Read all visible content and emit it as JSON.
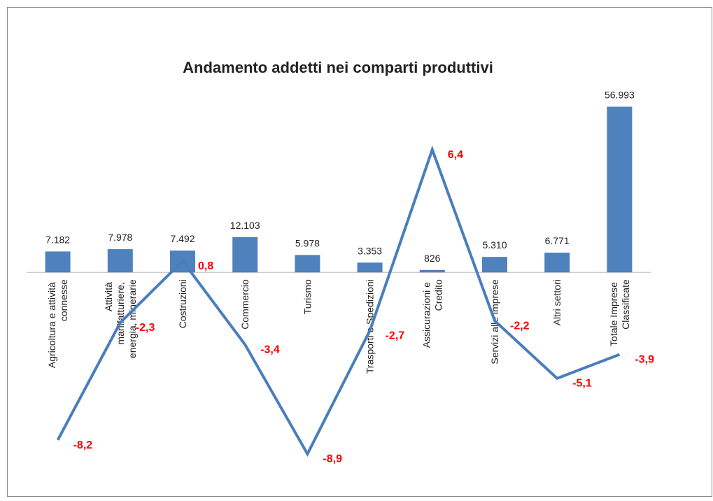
{
  "chart_data": {
    "type": "bar_line",
    "title": "Andamento addetti nei comparti produttivi",
    "categories": [
      "Agricoltura e attività connesse",
      "Attività manifatturiere, energia, minerarie",
      "Costruzioni",
      "Commercio",
      "Turismo",
      "Trasporti e Spedizioni",
      "Assicurazioni e Credito",
      "Servizi alle imprese",
      "Altri settori",
      "Totale Imprese Classificate"
    ],
    "series": [
      {
        "color": "#4f81bd",
        "values": [
          7182,
          7978,
          7492,
          12103,
          5978,
          3353,
          826,
          5310,
          6771,
          56993
        ],
        "value_labels": [
          "7.182",
          "7.978",
          "7.492",
          "12.103",
          "5.978",
          "3.353",
          "826",
          "5.310",
          "6.771",
          "56.993"
        ]
      },
      {
        "color": "#4a7ebb",
        "axis": "y2",
        "values": [
          -8.2,
          -2.3,
          0.8,
          -3.4,
          -8.9,
          -2.7,
          6.4,
          -2.2,
          -5.1,
          -3.9
        ],
        "value_labels": [
          "-8,2",
          "-2,3",
          "0,8",
          "-3,4",
          "-8,9",
          "-2,7",
          "6,4",
          "-2,2",
          "-5,1",
          "-3,9"
        ],
        "label_color": "#ff0000"
      }
    ],
    "ylim": [
      -70000,
      60000
    ],
    "y2lim": [
      -10,
      9
    ]
  }
}
